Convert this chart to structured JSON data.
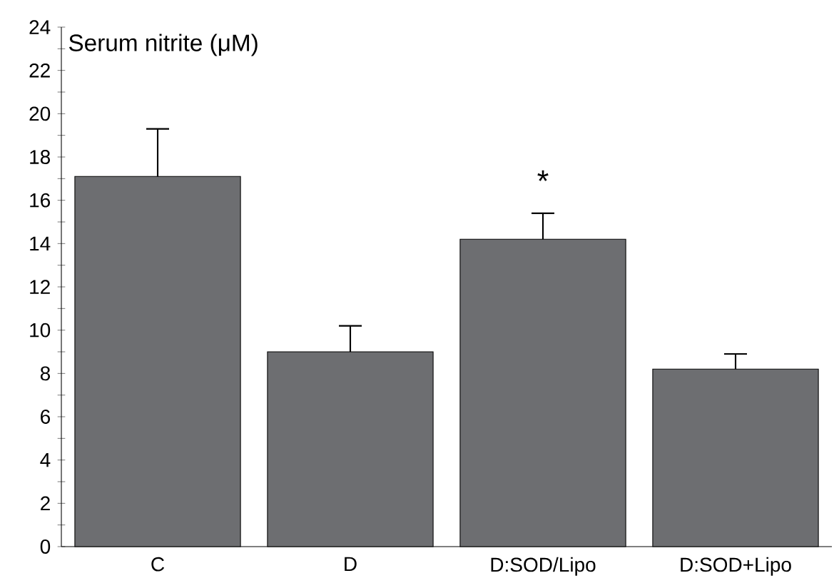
{
  "chart_data": {
    "type": "bar",
    "ylabel": "Serum nitrite (μM)",
    "categories": [
      "C",
      "D",
      "D:SOD/Lipo",
      "D:SOD+Lipo"
    ],
    "values": [
      17.1,
      9.0,
      14.2,
      8.2
    ],
    "errors": [
      [
        17.1,
        19.3
      ],
      [
        9.0,
        10.2
      ],
      [
        14.2,
        15.4
      ],
      [
        8.2,
        8.9
      ]
    ],
    "color": "#6d6e71",
    "ylim": [
      0,
      24
    ],
    "yticks": [
      0,
      {
        "value": 1,
        "label": null
      },
      2,
      {
        "value": 3,
        "label": null
      },
      4,
      {
        "value": 5,
        "label": null
      },
      6,
      {
        "value": 7,
        "label": null
      },
      8,
      {
        "value": 9,
        "label": null
      },
      10,
      {
        "value": 11,
        "label": null
      },
      12,
      {
        "value": 13,
        "label": null
      },
      14,
      {
        "value": 15,
        "label": null
      },
      16,
      {
        "value": 17,
        "label": null
      },
      18,
      {
        "value": 19,
        "label": null
      },
      20,
      {
        "value": 21,
        "label": null
      },
      22,
      {
        "value": 23,
        "label": null
      },
      24
    ],
    "annotations": [
      "*"
    ],
    "grid": false
  }
}
